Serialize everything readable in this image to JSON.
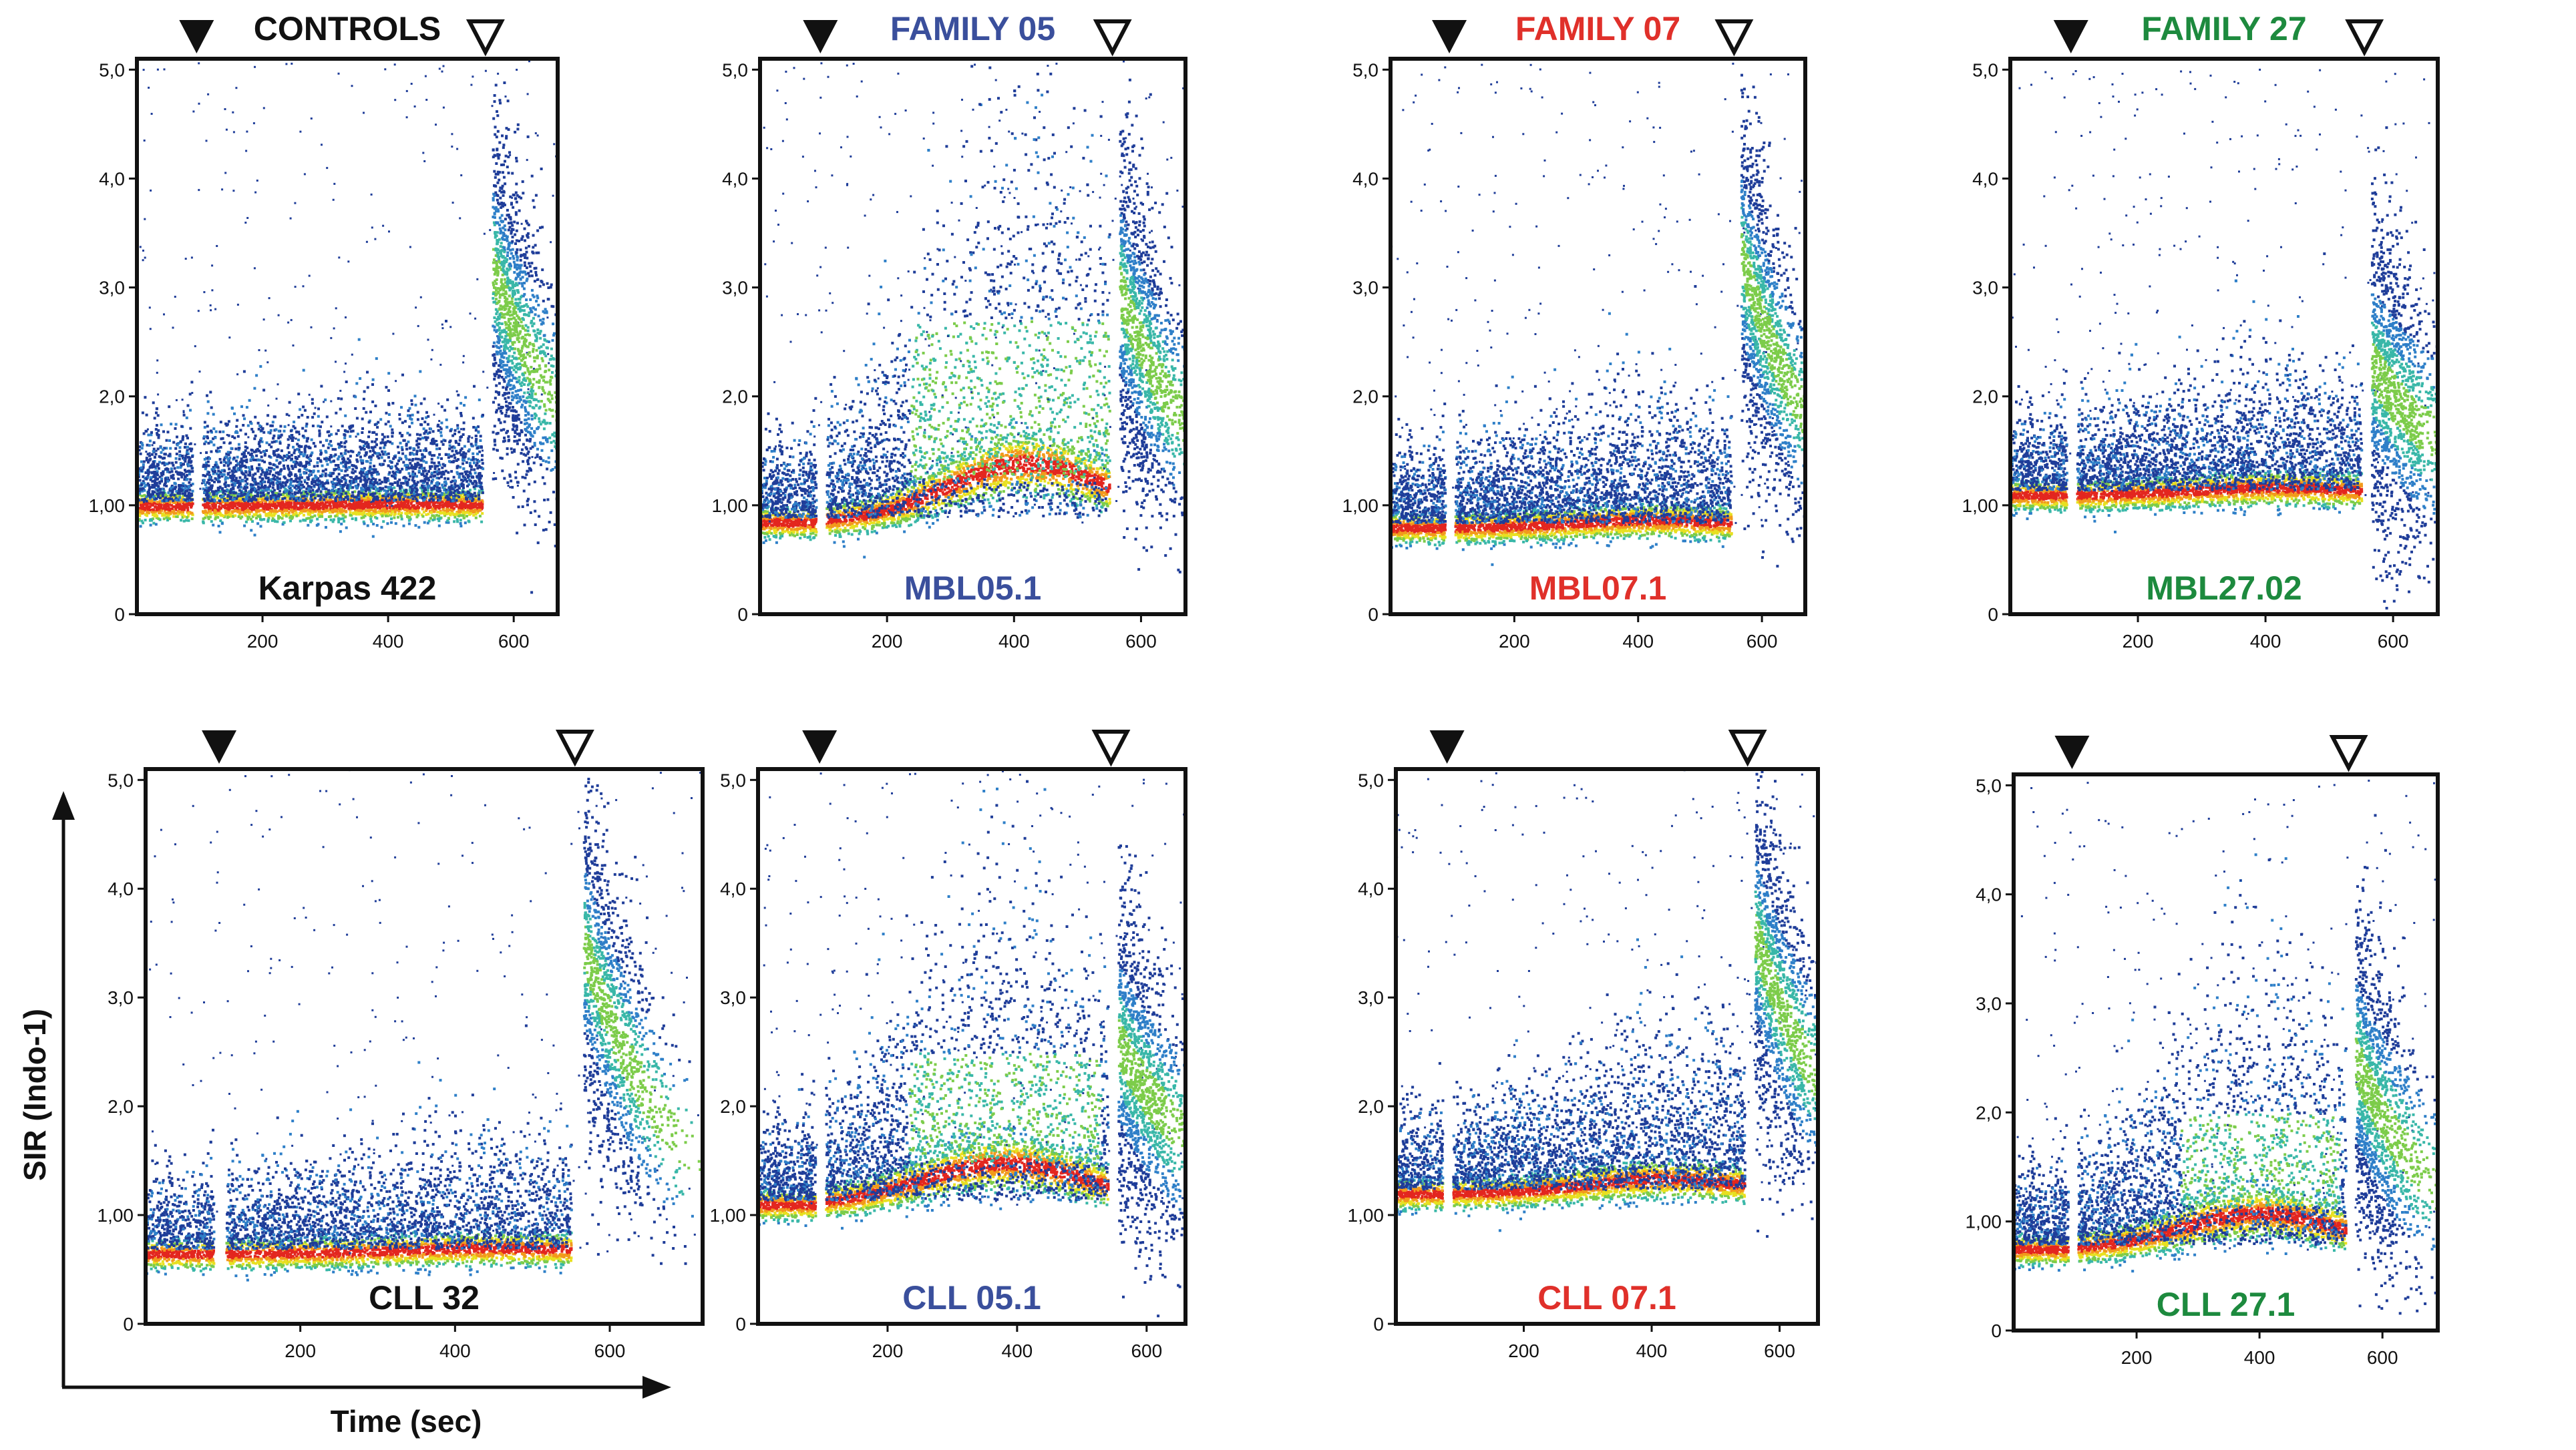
{
  "figure": {
    "y_axis_title": "SIR (Indo-1)",
    "x_axis_title": "Time (sec)"
  },
  "colors": {
    "CONTROLS": "#111111",
    "FAMILY 05": "#3a4f9c",
    "FAMILY 07": "#e0302a",
    "FAMILY 27": "#1d8a3e",
    "density_scale": [
      "#1f3d99",
      "#2e7fc8",
      "#39b7a8",
      "#7ccc4a",
      "#e8e020",
      "#f29a1c",
      "#e3261f"
    ]
  },
  "chart_data": [
    {
      "type": "scatter",
      "title": "CONTROLS",
      "sample_label": "Karpas 422",
      "color_group": "CONTROLS",
      "xlim": [
        0,
        670
      ],
      "ylim": [
        0,
        5.1
      ],
      "xticks": [
        "200",
        "400",
        "600"
      ],
      "yticks": [
        "0",
        "1,00",
        "2,0",
        "3,0",
        "4,0",
        "5,0"
      ],
      "stimulus_1_time": 95,
      "stimulus_2_time": 555,
      "baseline_sir": 1.0,
      "peak_sir": 1.05,
      "peak_time": 400,
      "post_stim2_peak": 3.2
    },
    {
      "type": "scatter",
      "title": "FAMILY 05",
      "sample_label": "MBL05.1",
      "color_group": "FAMILY 05",
      "xlim": [
        0,
        670
      ],
      "ylim": [
        0,
        5.1
      ],
      "xticks": [
        "200",
        "400",
        "600"
      ],
      "yticks": [
        "0",
        "1,00",
        "2,0",
        "3,0",
        "4,0",
        "5,0"
      ],
      "stimulus_1_time": 95,
      "stimulus_2_time": 555,
      "baseline_sir": 0.85,
      "peak_sir": 2.4,
      "peak_time": 420,
      "post_stim2_peak": 3.0
    },
    {
      "type": "scatter",
      "title": "FAMILY 07",
      "sample_label": "MBL07.1",
      "color_group": "FAMILY 07",
      "xlim": [
        0,
        670
      ],
      "ylim": [
        0,
        5.1
      ],
      "xticks": [
        "200",
        "400",
        "600"
      ],
      "yticks": [
        "0",
        "1,00",
        "2,0",
        "3,0",
        "4,0",
        "5,0"
      ],
      "stimulus_1_time": 95,
      "stimulus_2_time": 555,
      "baseline_sir": 0.8,
      "peak_sir": 1.0,
      "peak_time": 420,
      "post_stim2_peak": 3.3
    },
    {
      "type": "scatter",
      "title": "FAMILY 27",
      "sample_label": "MBL27.02",
      "color_group": "FAMILY 27",
      "xlim": [
        0,
        670
      ],
      "ylim": [
        0,
        5.1
      ],
      "xticks": [
        "200",
        "400",
        "600"
      ],
      "yticks": [
        "0",
        "1,00",
        "2,0",
        "3,0",
        "4,0",
        "5,0"
      ],
      "stimulus_1_time": 95,
      "stimulus_2_time": 555,
      "baseline_sir": 1.1,
      "peak_sir": 1.3,
      "peak_time": 420,
      "post_stim2_peak": 2.3
    },
    {
      "type": "scatter",
      "title": "",
      "sample_label": "CLL 32",
      "color_group": "CONTROLS",
      "xlim": [
        0,
        720
      ],
      "ylim": [
        0,
        5.1
      ],
      "xticks": [
        "200",
        "400",
        "600"
      ],
      "yticks": [
        "0",
        "1,00",
        "2,0",
        "3,0",
        "4,0",
        "5,0"
      ],
      "stimulus_1_time": 95,
      "stimulus_2_time": 555,
      "baseline_sir": 0.65,
      "peak_sir": 0.8,
      "peak_time": 450,
      "post_stim2_peak": 3.5
    },
    {
      "type": "scatter",
      "title": "",
      "sample_label": "CLL 05.1",
      "color_group": "FAMILY 05",
      "xlim": [
        0,
        660
      ],
      "ylim": [
        0,
        5.1
      ],
      "xticks": [
        "200",
        "400",
        "600"
      ],
      "yticks": [
        "0",
        "1,00",
        "2,0",
        "3,0",
        "4,0",
        "5,0"
      ],
      "stimulus_1_time": 95,
      "stimulus_2_time": 545,
      "baseline_sir": 1.1,
      "peak_sir": 2.2,
      "peak_time": 380,
      "post_stim2_peak": 2.6
    },
    {
      "type": "scatter",
      "title": "",
      "sample_label": "CLL 07.1",
      "color_group": "FAMILY 07",
      "xlim": [
        0,
        660
      ],
      "ylim": [
        0,
        5.1
      ],
      "xticks": [
        "200",
        "400",
        "600"
      ],
      "yticks": [
        "0",
        "1,00",
        "2,0",
        "3,0",
        "4,0",
        "5,0"
      ],
      "stimulus_1_time": 80,
      "stimulus_2_time": 550,
      "baseline_sir": 1.2,
      "peak_sir": 1.6,
      "peak_time": 420,
      "post_stim2_peak": 3.6
    },
    {
      "type": "scatter",
      "title": "",
      "sample_label": "CLL 27.1",
      "color_group": "FAMILY 27",
      "xlim": [
        0,
        690
      ],
      "ylim": [
        0,
        5.1
      ],
      "xticks": [
        "200",
        "400",
        "600"
      ],
      "yticks": [
        "0",
        "1,00",
        "2,0",
        "3,0",
        "4,0",
        "5,0"
      ],
      "stimulus_1_time": 95,
      "stimulus_2_time": 545,
      "baseline_sir": 0.75,
      "peak_sir": 1.7,
      "peak_time": 400,
      "post_stim2_peak": 2.5
    }
  ]
}
